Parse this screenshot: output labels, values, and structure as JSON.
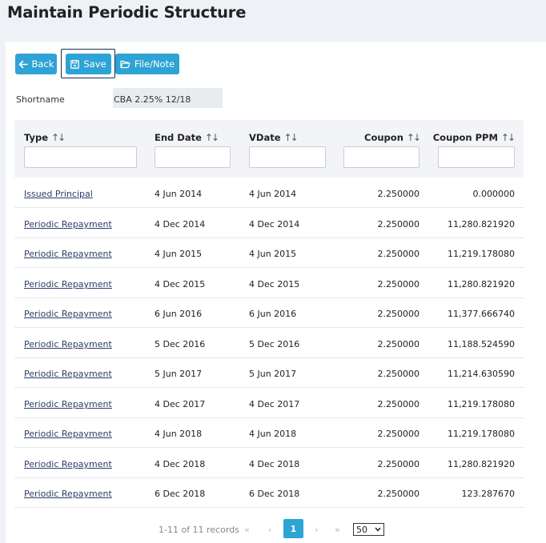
{
  "page": {
    "title": "Maintain Periodic Structure"
  },
  "toolbar": {
    "back_label": "Back",
    "save_label": "Save",
    "filenote_label": "File/Note"
  },
  "shortname": {
    "label": "Shortname",
    "value": "CBA 2.25% 12/18"
  },
  "table": {
    "columns": [
      "Type",
      "End Date",
      "VDate",
      "Coupon",
      "Coupon PPM"
    ],
    "sort_glyph": "↑↓",
    "rows": [
      {
        "type": "Issued Principal",
        "end_date": "4 Jun 2014",
        "vdate": "4 Jun 2014",
        "coupon": "2.250000",
        "coupon_ppm": "0.000000"
      },
      {
        "type": "Periodic Repayment",
        "end_date": "4 Dec 2014",
        "vdate": "4 Dec 2014",
        "coupon": "2.250000",
        "coupon_ppm": "11,280.821920"
      },
      {
        "type": "Periodic Repayment",
        "end_date": "4 Jun 2015",
        "vdate": "4 Jun 2015",
        "coupon": "2.250000",
        "coupon_ppm": "11,219.178080"
      },
      {
        "type": "Periodic Repayment",
        "end_date": "4 Dec 2015",
        "vdate": "4 Dec 2015",
        "coupon": "2.250000",
        "coupon_ppm": "11,280.821920"
      },
      {
        "type": "Periodic Repayment",
        "end_date": "6 Jun 2016",
        "vdate": "6 Jun 2016",
        "coupon": "2.250000",
        "coupon_ppm": "11,377.666740"
      },
      {
        "type": "Periodic Repayment",
        "end_date": "5 Dec 2016",
        "vdate": "5 Dec 2016",
        "coupon": "2.250000",
        "coupon_ppm": "11,188.524590"
      },
      {
        "type": "Periodic Repayment",
        "end_date": "5 Jun 2017",
        "vdate": "5 Jun 2017",
        "coupon": "2.250000",
        "coupon_ppm": "11,214.630590"
      },
      {
        "type": "Periodic Repayment",
        "end_date": "4 Dec 2017",
        "vdate": "4 Dec 2017",
        "coupon": "2.250000",
        "coupon_ppm": "11,219.178080"
      },
      {
        "type": "Periodic Repayment",
        "end_date": "4 Jun 2018",
        "vdate": "4 Jun 2018",
        "coupon": "2.250000",
        "coupon_ppm": "11,219.178080"
      },
      {
        "type": "Periodic Repayment",
        "end_date": "4 Dec 2018",
        "vdate": "4 Dec 2018",
        "coupon": "2.250000",
        "coupon_ppm": "11,280.821920"
      },
      {
        "type": "Periodic Repayment",
        "end_date": "6 Dec 2018",
        "vdate": "6 Dec 2018",
        "coupon": "2.250000",
        "coupon_ppm": "123.287670"
      }
    ]
  },
  "pagination": {
    "info": "1-11 of 11 records",
    "first": "«",
    "prev": "‹",
    "current": "1",
    "next": "›",
    "last": "»",
    "page_size": "50"
  },
  "colors": {
    "accent": "#2ea3d5",
    "link": "#2c3e66"
  }
}
